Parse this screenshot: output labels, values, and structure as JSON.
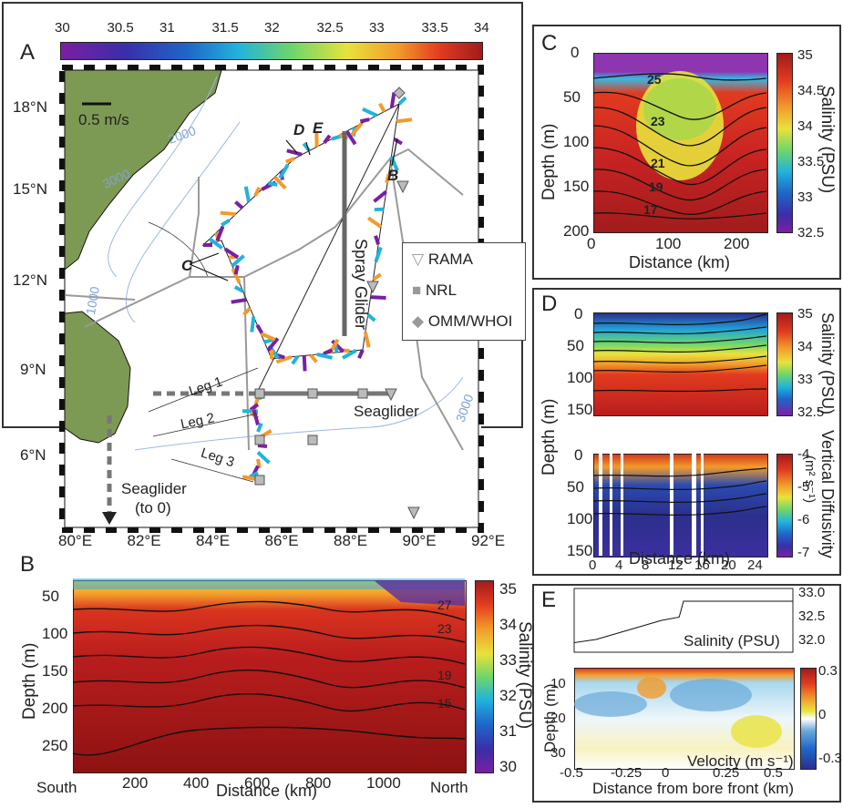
{
  "panels": {
    "a": {
      "letter": "A"
    },
    "b": {
      "letter": "B"
    },
    "c": {
      "letter": "C"
    },
    "d": {
      "letter": "D"
    },
    "e": {
      "letter": "E"
    }
  },
  "colorbar_top": {
    "ticks": [
      "30",
      "30.5",
      "31",
      "31.5",
      "32",
      "32.5",
      "33",
      "33.5",
      "34"
    ],
    "colors": [
      "#7a1fa2",
      "#3b2ea8",
      "#1f66c9",
      "#21b3dd",
      "#6fd66a",
      "#e8e23c",
      "#f29b2b",
      "#e23b1f",
      "#a11c1c"
    ]
  },
  "map": {
    "lat_labels": [
      "18°N",
      "15°N",
      "12°N",
      "9°N",
      "6°N"
    ],
    "lon_labels": [
      "80°E",
      "82°E",
      "84°E",
      "86°E",
      "88°E",
      "90°E",
      "92°E"
    ],
    "scale_label": "0.5 m/s",
    "contour_labels": [
      "2000",
      "3000",
      "1000",
      "3000"
    ],
    "annotations": [
      "D",
      "E",
      "B",
      "C"
    ],
    "spray_glider_label": "Spray Glider",
    "seaglider_label": "Seaglider",
    "seaglider_to0_label": [
      "Seaglider",
      "(to 0)"
    ],
    "legs": [
      "Leg 1",
      "Leg 2",
      "Leg 3"
    ],
    "legend": [
      {
        "label": "RAMA",
        "symbol": "triangle-icon"
      },
      {
        "label": "NRL",
        "symbol": "square-icon"
      },
      {
        "label": "OMM/WHOI",
        "symbol": "diamond-icon"
      }
    ],
    "land_color": "#7d9a55"
  },
  "panel_b": {
    "y_ticks": [
      "50",
      "100",
      "150",
      "200",
      "250"
    ],
    "x_ticks": [
      "200",
      "400",
      "600",
      "800",
      "1000"
    ],
    "ylabel": "Depth (m)",
    "xlabel": "Distance (km)",
    "south_label": "South",
    "north_label": "North",
    "contour_labels": [
      "27",
      "23",
      "19",
      "15"
    ],
    "cbar_ticks": [
      "35",
      "34",
      "33",
      "32",
      "31",
      "30"
    ],
    "cbar_label": "Salinity (PSU)"
  },
  "panel_c": {
    "y_ticks": [
      "0",
      "50",
      "100",
      "150",
      "200"
    ],
    "x_ticks": [
      "0",
      "100",
      "200"
    ],
    "ylabel": "Depth (m)",
    "xlabel": "Distance (km)",
    "contour_labels": [
      "25",
      "23",
      "21",
      "19",
      "17"
    ],
    "cbar_ticks": [
      "35",
      "34.5",
      "34",
      "33.5",
      "33",
      "32.5"
    ],
    "cbar_label": "Salinity (PSU)"
  },
  "panel_d": {
    "upper_y_ticks": [
      "0",
      "50",
      "100",
      "150"
    ],
    "lower_y_ticks": [
      "0",
      "50",
      "100",
      "150"
    ],
    "x_ticks": [
      "0",
      "4",
      "8",
      "12",
      "16",
      "20",
      "24"
    ],
    "ylabel": "Depth (m)",
    "xlabel": "Distance (km)",
    "upper_cbar_ticks": [
      "35",
      "34",
      "33",
      "32.5"
    ],
    "upper_cbar_label": "Salinity (PSU)",
    "lower_cbar_ticks": [
      "-4",
      "-5",
      "-6",
      "-7"
    ],
    "lower_cbar_label": "Vertical Diffusivity",
    "lower_cbar_units": "(m² s⁻¹)"
  },
  "panel_e": {
    "top_y_ticks": [
      "33.0",
      "32.5",
      "32.0"
    ],
    "top_label": "Salinity (PSU)",
    "y_ticks": [
      "10",
      "20",
      "30"
    ],
    "ylabel": "Depth (m)",
    "x_ticks": [
      "-0.5",
      "-0.25",
      "0",
      "0.25",
      "0.5"
    ],
    "xlabel": "Distance from bore front (km)",
    "velocity_label": "Velocity (m s⁻¹)",
    "cbar_ticks": [
      "0.3",
      "0",
      "-0.3"
    ]
  },
  "chart_data": [
    {
      "type": "heatmap",
      "title": "",
      "panel": "A",
      "colorbar": {
        "label": "",
        "range": [
          30,
          34
        ],
        "ticks": [
          30,
          30.5,
          31,
          31.5,
          32,
          32.5,
          33,
          33.5,
          34
        ]
      },
      "xlabel": "",
      "ylabel": "",
      "xlim": [
        79.5,
        92.2
      ],
      "ylim": [
        3.2,
        19.2
      ]
    },
    {
      "type": "heatmap",
      "panel": "B",
      "xlabel": "Distance (km)",
      "ylabel": "Depth (m)",
      "xlim": [
        0,
        1150
      ],
      "ylim": [
        280,
        10
      ],
      "colorbar": {
        "label": "Salinity (PSU)",
        "range": [
          30,
          35
        ]
      },
      "contours": [
        27,
        23,
        19,
        15
      ]
    },
    {
      "type": "heatmap",
      "panel": "C",
      "xlabel": "Distance (km)",
      "ylabel": "Depth (m)",
      "xlim": [
        0,
        250
      ],
      "ylim": [
        200,
        0
      ],
      "colorbar": {
        "label": "Salinity (PSU)",
        "range": [
          32.5,
          35
        ]
      },
      "contours": [
        25,
        23,
        21,
        19,
        17
      ]
    },
    {
      "type": "heatmap",
      "panel": "D",
      "xlabel": "Distance (km)",
      "ylabel": "Depth (m)",
      "xlim": [
        0,
        26
      ],
      "ylim": [
        150,
        0
      ],
      "colorbar": [
        {
          "label": "Salinity (PSU)",
          "range": [
            32.5,
            35
          ]
        },
        {
          "label": "Vertical Diffusivity",
          "range": [
            -7,
            -4
          ]
        }
      ]
    },
    {
      "type": "line",
      "panel": "E-top",
      "ylabel": "Salinity (PSU)",
      "xlim": [
        -0.5,
        0.5
      ],
      "ylim": [
        32.0,
        33.0
      ],
      "x": [
        -0.5,
        -0.4,
        -0.3,
        -0.2,
        -0.1,
        -0.02,
        0.0,
        0.1,
        0.2,
        0.3,
        0.4,
        0.5
      ],
      "y": [
        32.15,
        32.2,
        32.3,
        32.4,
        32.5,
        32.55,
        32.8,
        32.8,
        32.8,
        32.8,
        32.8,
        32.8
      ]
    },
    {
      "type": "heatmap",
      "panel": "E",
      "xlabel": "Distance from bore front (km)",
      "ylabel": "Depth (m)",
      "xlim": [
        -0.5,
        0.5
      ],
      "ylim": [
        30,
        5
      ],
      "colorbar": {
        "label": "Velocity (m s⁻¹)",
        "range": [
          -0.3,
          0.3
        ]
      }
    }
  ]
}
